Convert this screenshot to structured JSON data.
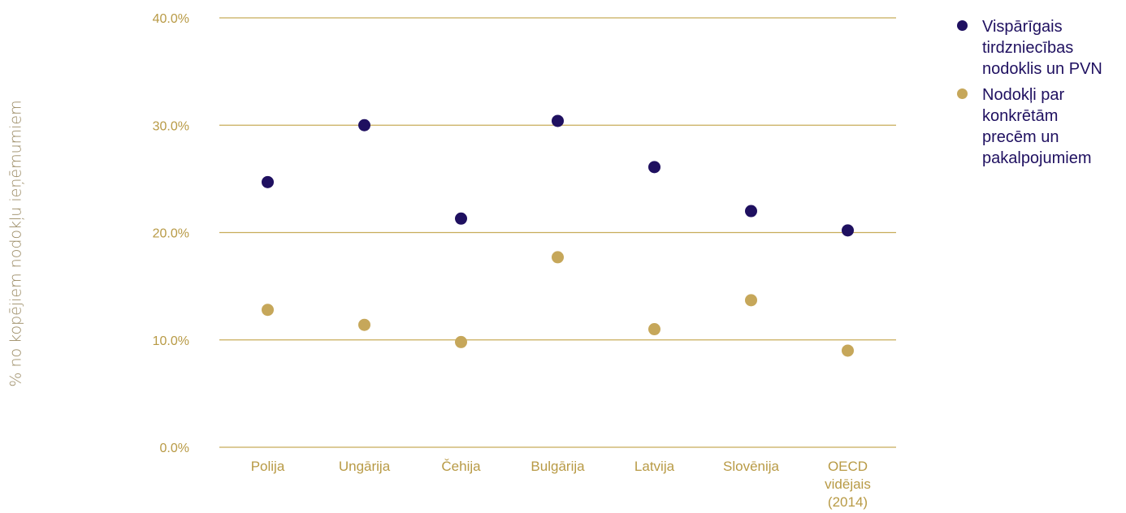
{
  "chart_data": {
    "type": "scatter",
    "ylabel": "% no kopējiem nodokļu ieņēmumiem",
    "yticks": [
      "0.0%",
      "10.0%",
      "20.0%",
      "30.0%",
      "40.0%"
    ],
    "ylim": [
      0,
      40
    ],
    "grid": true,
    "legend_position": "right",
    "categories": [
      "Polija",
      "Ungārija",
      "Čehija",
      "Bulgārija",
      "Latvija",
      "Slovēnija",
      "OECD vidējais (2014)"
    ],
    "category_lines": [
      [
        "Polija"
      ],
      [
        "Ungārija"
      ],
      [
        "Čehija"
      ],
      [
        "Bulgārija"
      ],
      [
        "Latvija"
      ],
      [
        "Slovēnija"
      ],
      [
        "OECD",
        "vidējais",
        "(2014)"
      ]
    ],
    "series": [
      {
        "name": "Vispārīgais tirdzniecības nodoklis un PVN",
        "name_lines": [
          "Vispārīgais",
          "tirdzniecības",
          "nodoklis un PVN"
        ],
        "color": "#1f1060",
        "values": [
          24.7,
          30.0,
          21.3,
          30.4,
          26.1,
          22.0,
          20.2
        ]
      },
      {
        "name": "Nodokļi par konkrētām precēm un pakalpojumiem",
        "name_lines": [
          "Nodokļi par",
          "konkrētām",
          "precēm un",
          "pakalpojumiem"
        ],
        "color": "#c6a75a",
        "values": [
          12.8,
          11.4,
          9.8,
          17.7,
          11.0,
          13.7,
          9.0
        ]
      }
    ],
    "grid_color": "#c8ac5a"
  }
}
